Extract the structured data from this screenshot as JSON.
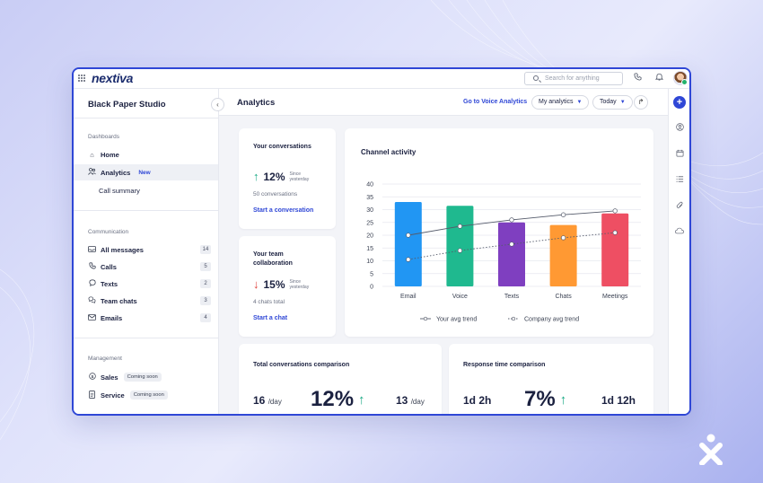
{
  "app": {
    "logo_text": "nextiva",
    "search_placeholder": "Search for anything"
  },
  "sidebar": {
    "workspace": "Black Paper Studio",
    "sections": {
      "dashboards": "Dashboards",
      "communication": "Communication",
      "management": "Management"
    },
    "dashboards": [
      {
        "label": "Home",
        "icon": "home-icon"
      },
      {
        "label": "Analytics",
        "icon": "analytics-icon",
        "badge": "New",
        "active": true
      },
      {
        "label": "Call summary"
      }
    ],
    "communication": [
      {
        "label": "All messages",
        "icon": "inbox-icon",
        "count": "14"
      },
      {
        "label": "Calls",
        "icon": "phone-icon",
        "count": "5"
      },
      {
        "label": "Texts",
        "icon": "chat-icon",
        "count": "2"
      },
      {
        "label": "Team chats",
        "icon": "team-chat-icon",
        "count": "3"
      },
      {
        "label": "Emails",
        "icon": "mail-icon",
        "count": "4"
      }
    ],
    "management": [
      {
        "label": "Sales",
        "icon": "dollar-icon",
        "tag": "Coming soon"
      },
      {
        "label": "Service",
        "icon": "document-icon",
        "tag": "Coming soon"
      }
    ]
  },
  "header": {
    "title": "Analytics",
    "voice_link": "Go to Voice Analytics",
    "view_select": "My analytics",
    "period_select": "Today"
  },
  "cards": {
    "conversations": {
      "title": "Your conversations",
      "value": "12%",
      "direction": "up",
      "since": "Since yesterday",
      "sub": "50 conversations",
      "link": "Start a conversation"
    },
    "collaboration": {
      "title": "Your team collaboration",
      "value": "15%",
      "direction": "down",
      "since": "Since yesterday",
      "sub": "4 chats total",
      "link": "Start a chat"
    },
    "total_comparison": {
      "title": "Total conversations comparison",
      "left_value": "16",
      "left_unit": "/day",
      "pct": "12%",
      "right_value": "13",
      "right_unit": "/day"
    },
    "response_comparison": {
      "title": "Response time comparison",
      "left_value": "1d 2h",
      "pct": "7%",
      "right_value": "1d 12h"
    }
  },
  "chart_data": {
    "type": "bar",
    "title": "Channel activity",
    "categories": [
      "Email",
      "Voice",
      "Texts",
      "Chats",
      "Meetings"
    ],
    "values": [
      33,
      31.5,
      25,
      24,
      28.5
    ],
    "colors": [
      "#2196f3",
      "#1fb98f",
      "#7f3fc0",
      "#ff9933",
      "#ee4f63"
    ],
    "ylim": [
      0,
      40
    ],
    "yticks": [
      0,
      5,
      10,
      15,
      20,
      25,
      30,
      35,
      40
    ],
    "grid": true,
    "lines": [
      {
        "name": "Your avg trend",
        "style": "solid",
        "values": [
          20,
          23.5,
          26,
          28,
          29.5
        ]
      },
      {
        "name": "Company avg trend",
        "style": "dotted",
        "values": [
          10.5,
          14,
          16.5,
          19,
          21
        ]
      }
    ],
    "legend_position": "bottom"
  }
}
